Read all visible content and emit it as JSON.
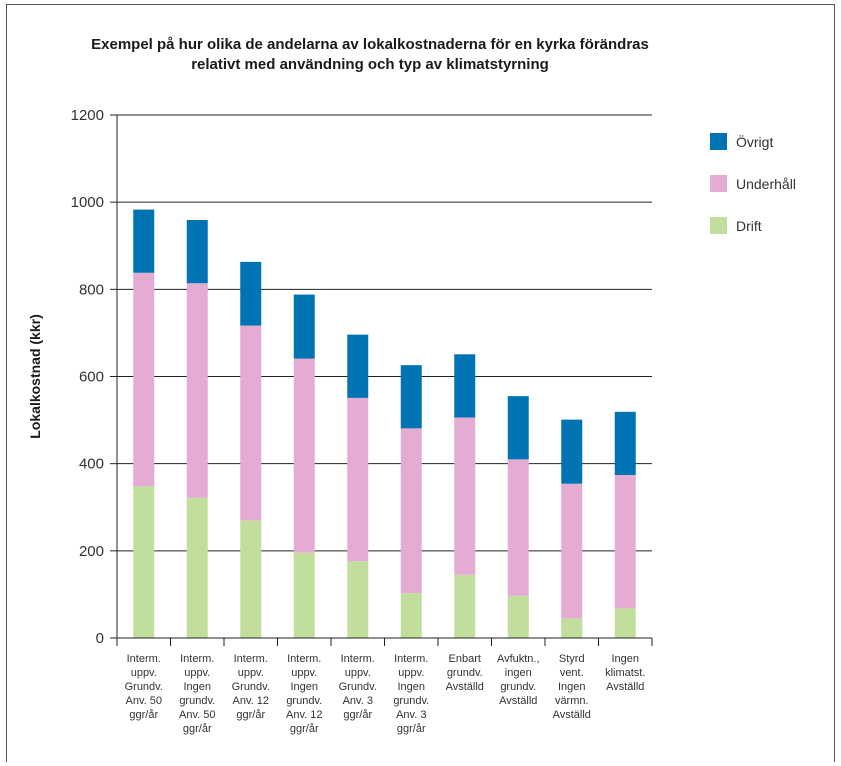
{
  "chart_data": {
    "type": "bar",
    "stacked": true,
    "title": "Exempel på hur olika de andelarna av lokalkostnaderna för en kyrka förändras relativt med användning och typ av klimatstyrning",
    "title_lines": [
      "Exempel på hur olika de andelarna av lokalkostnaderna för en kyrka förändras",
      "relativt med användning och typ av klimatstyrning"
    ],
    "xlabel": "",
    "ylabel": "Lokalkostnad (kkr)",
    "ylim": [
      0,
      1200
    ],
    "yticks": [
      0,
      200,
      400,
      600,
      800,
      1000,
      1200
    ],
    "grid": true,
    "legend_position": "right",
    "categories": [
      [
        "Interm.",
        "uppv.",
        "Grundv.",
        "Anv. 50",
        "ggr/år"
      ],
      [
        "Interm.",
        "uppv.",
        "Ingen",
        "grundv.",
        "Anv. 50",
        "ggr/år"
      ],
      [
        "Interm.",
        "uppv.",
        "Grundv.",
        "Anv. 12",
        "ggr/år"
      ],
      [
        "Interm.",
        "uppv.",
        "Ingen",
        "grundv.",
        "Anv. 12",
        "ggr/år"
      ],
      [
        "Interm.",
        "uppv.",
        "Grundv.",
        "Anv. 3",
        "ggr/år"
      ],
      [
        "Interm.",
        "uppv.",
        "Ingen",
        "grundv.",
        "Anv. 3",
        "ggr/år"
      ],
      [
        "Enbart",
        "grundv.",
        "Avställd"
      ],
      [
        "Avfuktn.,",
        "ingen",
        "grundv.",
        "Avställd"
      ],
      [
        "Styrd",
        "vent.",
        "Ingen",
        "värmn.",
        "Avställd"
      ],
      [
        "Ingen",
        "klimatst.",
        "Avställd"
      ]
    ],
    "series": [
      {
        "name": "Drift",
        "color": "#c2de9c",
        "values": [
          348,
          322,
          270,
          196,
          176,
          103,
          145,
          97,
          45,
          68
        ]
      },
      {
        "name": "Underhåll",
        "color": "#e4acd3",
        "values": [
          490,
          492,
          447,
          445,
          375,
          378,
          361,
          313,
          309,
          306
        ]
      },
      {
        "name": "Övrigt",
        "color": "#0073b2",
        "values": [
          145,
          145,
          146,
          147,
          145,
          145,
          145,
          145,
          147,
          145
        ]
      }
    ],
    "legend_order": [
      "Övrigt",
      "Underhåll",
      "Drift"
    ]
  }
}
